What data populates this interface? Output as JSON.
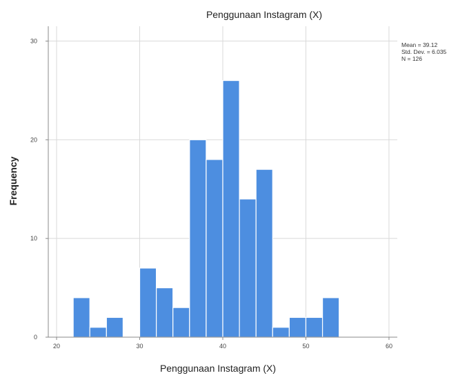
{
  "chart_data": {
    "type": "bar",
    "title": "Penggunaan Instagram (X)",
    "xlabel": "Penggunaan Instagram (X)",
    "ylabel": "Frequency",
    "xlim": [
      19,
      61
    ],
    "ylim": [
      0,
      31.5
    ],
    "x_ticks": [
      "20",
      "30",
      "40",
      "50",
      "60"
    ],
    "x_tick_values": [
      20,
      30,
      40,
      50,
      60
    ],
    "y_ticks": [
      "0",
      "10",
      "20",
      "30"
    ],
    "y_tick_values": [
      0,
      10,
      20,
      30
    ],
    "bin_width": 2,
    "bins": [
      {
        "start": 22,
        "end": 24,
        "value": 4
      },
      {
        "start": 24,
        "end": 26,
        "value": 1
      },
      {
        "start": 26,
        "end": 28,
        "value": 2
      },
      {
        "start": 28,
        "end": 30,
        "value": 0
      },
      {
        "start": 30,
        "end": 32,
        "value": 7
      },
      {
        "start": 32,
        "end": 34,
        "value": 5
      },
      {
        "start": 34,
        "end": 36,
        "value": 3
      },
      {
        "start": 36,
        "end": 38,
        "value": 20
      },
      {
        "start": 38,
        "end": 40,
        "value": 18
      },
      {
        "start": 40,
        "end": 42,
        "value": 26
      },
      {
        "start": 42,
        "end": 44,
        "value": 14
      },
      {
        "start": 44,
        "end": 46,
        "value": 17
      },
      {
        "start": 46,
        "end": 48,
        "value": 1
      },
      {
        "start": 48,
        "end": 50,
        "value": 2
      },
      {
        "start": 50,
        "end": 52,
        "value": 2
      },
      {
        "start": 52,
        "end": 54,
        "value": 4
      }
    ],
    "stats": [
      "Mean = 39.12",
      "Std. Dev. = 6.035",
      "N = 126"
    ],
    "grid": true,
    "bar_color": "#4d8ee0",
    "bar_edge_color": "#ffffff",
    "grid_color": "#d9d9d9",
    "axis_color": "#888888"
  }
}
